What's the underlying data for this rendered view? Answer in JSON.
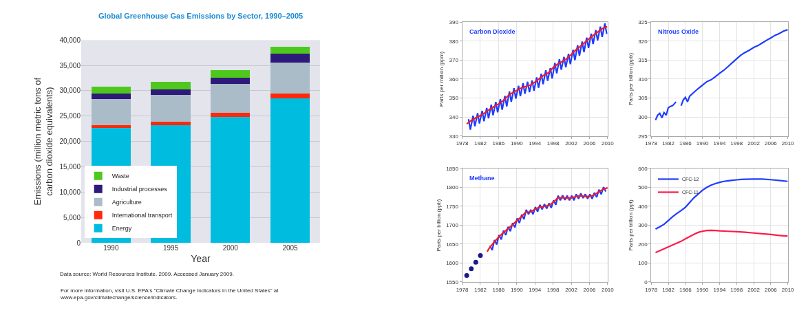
{
  "chart_data": [
    {
      "type": "bar",
      "title": "Global Greenhouse Gas Emissions by Sector, 1990–2005",
      "xlabel": "Year",
      "ylabel": "Emissions (million metric tons of carbon dioxide equivalents)",
      "categories": [
        "1990",
        "1995",
        "2000",
        "2005"
      ],
      "stacked": true,
      "legend": "bottom left",
      "grid": "y",
      "ylim": [
        0,
        40000
      ],
      "yticks": [
        0,
        {
          "value": 5000,
          "label": "5,000"
        },
        {
          "value": 10000,
          "label": "10,000"
        },
        {
          "value": 15000,
          "label": "15,000"
        },
        {
          "value": 20000,
          "label": "20,000"
        },
        {
          "value": 25000,
          "label": "25,000"
        },
        {
          "value": 30000,
          "label": "30,000"
        },
        {
          "value": 35000,
          "label": "35,000"
        },
        {
          "value": 40000,
          "label": "40,000"
        }
      ],
      "series": [
        {
          "name": "Energy",
          "color": "#00bde0",
          "values": [
            22600,
            23200,
            24800,
            28500
          ]
        },
        {
          "name": "International transport",
          "color": "#ff2a0a",
          "values": [
            600,
            700,
            800,
            900
          ]
        },
        {
          "name": "Agriculture",
          "color": "#a9bcc8",
          "values": [
            5200,
            5300,
            5700,
            6100
          ]
        },
        {
          "name": "Industrial processes",
          "color": "#2e1a78",
          "values": [
            1100,
            1100,
            1300,
            1800
          ]
        },
        {
          "name": "Waste",
          "color": "#4fc81e",
          "values": [
            1300,
            1500,
            1500,
            1400
          ]
        }
      ],
      "annotations": [
        "Data source: World Resources Institute. 2009. Accessed January 2009.",
        "For more information, visit U.S. EPA's \"Climate Change Indicators in the United States\" at www.epa.gov/climatechange/science/indicators."
      ]
    },
    {
      "type": "line",
      "title": "Carbon Dioxide",
      "ylabel": "Parts per million (ppm)",
      "grid": true,
      "xlim": [
        1978,
        2010
      ],
      "xticks": [
        1978,
        1982,
        1986,
        1990,
        1994,
        1998,
        2002,
        2006,
        2010
      ],
      "ylim": [
        330,
        390
      ],
      "yticks": [
        330,
        340,
        350,
        360,
        370,
        380,
        390
      ],
      "series": [
        {
          "color": "#1f3cff",
          "x": [
            1979.4,
            1979.8,
            1980.4,
            1980.8,
            1981.4,
            1981.8,
            1982.4,
            1982.8,
            1983.4,
            1983.8,
            1984.4,
            1984.8,
            1985.4,
            1985.8,
            1986.4,
            1986.8,
            1987.4,
            1987.8,
            1988.4,
            1988.8,
            1989.4,
            1989.8,
            1990.4,
            1990.8,
            1991.4,
            1991.8,
            1992.4,
            1992.8,
            1993.4,
            1993.8,
            1994.4,
            1994.8,
            1995.4,
            1995.8,
            1996.4,
            1996.8,
            1997.4,
            1997.8,
            1998.4,
            1998.8,
            1999.4,
            1999.8,
            2000.4,
            2000.8,
            2001.4,
            2001.8,
            2002.4,
            2002.8,
            2003.4,
            2003.8,
            2004.4,
            2004.8,
            2005.4,
            2005.8,
            2006.4,
            2006.8,
            2007.4,
            2007.8,
            2008.4,
            2008.8,
            2009.4,
            2009.8
          ],
          "values": [
            338.9,
            333.4,
            340.7,
            335.2,
            342.1,
            336.6,
            343.3,
            337.8,
            344.8,
            339.3,
            346.5,
            341.0,
            348.0,
            342.5,
            349.4,
            343.9,
            351.1,
            345.6,
            353.5,
            348.0,
            355.2,
            349.7,
            356.5,
            351.0,
            357.8,
            352.3,
            358.6,
            353.1,
            359.3,
            353.8,
            360.9,
            355.4,
            362.8,
            357.3,
            364.6,
            359.1,
            365.8,
            360.3,
            368.5,
            363.0,
            370.4,
            364.9,
            371.7,
            366.2,
            373.3,
            367.8,
            375.4,
            369.9,
            377.8,
            372.3,
            379.7,
            374.2,
            381.8,
            376.3,
            383.9,
            378.4,
            385.8,
            380.3,
            387.6,
            382.1,
            389.3,
            383.8
          ]
        },
        {
          "color": "#ff1a1a",
          "x": [
            1979,
            1980,
            1981,
            1982,
            1983,
            1984,
            1985,
            1986,
            1987,
            1988,
            1989,
            1990,
            1991,
            1992,
            1993,
            1994,
            1995,
            1996,
            1997,
            1998,
            1999,
            2000,
            2001,
            2002,
            2003,
            2004,
            2005,
            2006,
            2007,
            2008,
            2009,
            2009.9
          ],
          "values": [
            336.4,
            338.2,
            339.6,
            340.8,
            342.3,
            344.0,
            345.5,
            346.9,
            348.6,
            351.0,
            352.7,
            354.0,
            355.3,
            356.1,
            356.8,
            358.4,
            360.3,
            362.1,
            363.3,
            366.0,
            367.9,
            369.2,
            370.8,
            372.9,
            375.3,
            377.2,
            379.3,
            381.4,
            383.3,
            385.1,
            386.8,
            387.6
          ]
        }
      ]
    },
    {
      "type": "line",
      "title": "Nitrous Oxide",
      "ylabel": "Parts per billion (ppb)",
      "grid": true,
      "xlim": [
        1978,
        2010
      ],
      "xticks": [
        1978,
        1982,
        1986,
        1990,
        1994,
        1998,
        2002,
        2006,
        2010
      ],
      "ylim": [
        295,
        325
      ],
      "yticks": [
        295,
        300,
        305,
        310,
        315,
        320,
        325
      ],
      "series": [
        {
          "color": "#1f3cff",
          "x": [
            1979,
            1979.5,
            1980,
            1980.5,
            1981,
            1981.5,
            1982,
            1982.5,
            1983,
            1983.8,
            1984.2,
            1985,
            1985.5,
            1986,
            1986.5,
            1987,
            1988,
            1989,
            1990,
            1991,
            1992,
            1993,
            1994,
            1995,
            1996,
            1997,
            1998,
            1999,
            2000,
            2001,
            2002,
            2003,
            2004,
            2005,
            2006,
            2007,
            2008,
            2009,
            2010
          ],
          "values": [
            299.2,
            300.5,
            301,
            299.8,
            301.2,
            300.5,
            302.5,
            302.8,
            303.0,
            304.0,
            null,
            303.0,
            304.5,
            305.2,
            304.0,
            305.5,
            306.5,
            307.5,
            308.4,
            309.3,
            309.8,
            310.6,
            311.5,
            312.3,
            313.3,
            314.3,
            315.3,
            316.3,
            317.0,
            317.6,
            318.3,
            318.8,
            319.5,
            320.2,
            320.8,
            321.5,
            322.0,
            322.6,
            323.0
          ]
        }
      ]
    },
    {
      "type": "line",
      "title": "Methane",
      "ylabel": "Parts per billion (ppb)",
      "grid": true,
      "xlim": [
        1978,
        2010
      ],
      "xticks": [
        1978,
        1982,
        1986,
        1990,
        1994,
        1998,
        2002,
        2006,
        2010
      ],
      "ylim": [
        1550,
        1850
      ],
      "yticks": [
        1550,
        1600,
        1650,
        1700,
        1750,
        1800,
        1850
      ],
      "series": [
        {
          "type": "scatter",
          "marker": "circle",
          "color": "#1a1a8c",
          "x": [
            1979,
            1980,
            1981,
            1982
          ],
          "values": [
            1567,
            1585,
            1602,
            1620
          ]
        },
        {
          "color": "#1f3cff",
          "x": [
            1984.1,
            1984.6,
            1985.1,
            1985.6,
            1986.1,
            1986.6,
            1987.1,
            1987.6,
            1988.1,
            1988.6,
            1989.1,
            1989.6,
            1990.1,
            1990.6,
            1991.1,
            1991.6,
            1992.1,
            1992.6,
            1993.1,
            1993.6,
            1994.1,
            1994.6,
            1995.1,
            1995.6,
            1996.1,
            1996.6,
            1997.1,
            1997.6,
            1998.1,
            1998.6,
            1999.1,
            1999.6,
            2000.1,
            2000.6,
            2001.1,
            2001.6,
            2002.1,
            2002.6,
            2003.1,
            2003.6,
            2004.1,
            2004.6,
            2005.1,
            2005.6,
            2006.1,
            2006.6,
            2007.1,
            2007.6,
            2008.1,
            2008.6,
            2009.1,
            2009.6
          ],
          "values": [
            1646,
            1634,
            1661,
            1649,
            1674,
            1662,
            1686,
            1674,
            1696,
            1684,
            1706,
            1694,
            1718,
            1706,
            1728,
            1716,
            1741,
            1729,
            1741,
            1729,
            1748,
            1736,
            1754,
            1742,
            1756,
            1744,
            1758,
            1746,
            1766,
            1754,
            1778,
            1766,
            1779,
            1767,
            1778,
            1766,
            1778,
            1766,
            1782,
            1770,
            1784,
            1772,
            1782,
            1770,
            1782,
            1770,
            1786,
            1774,
            1794,
            1782,
            1801,
            1789
          ]
        },
        {
          "color": "#ff1a1a",
          "x": [
            1983.5,
            1984,
            1985,
            1986,
            1987,
            1988,
            1989,
            1990,
            1991,
            1992,
            1993,
            1994,
            1995,
            1996,
            1997,
            1998,
            1999,
            2000,
            2001,
            2002,
            2003,
            2004,
            2005,
            2006,
            2007,
            2008,
            2009,
            2010
          ],
          "values": [
            1630,
            1640,
            1655,
            1668,
            1680,
            1690,
            1700,
            1712,
            1722,
            1735,
            1735,
            1742,
            1748,
            1750,
            1752,
            1760,
            1772,
            1773,
            1772,
            1772,
            1776,
            1778,
            1776,
            1776,
            1780,
            1788,
            1795,
            1799
          ]
        }
      ]
    },
    {
      "type": "line",
      "ylabel": "Parts per trillion (ppt)",
      "grid": true,
      "legend": "top left",
      "xlim": [
        1978,
        2010
      ],
      "xticks": [
        1978,
        1982,
        1986,
        1990,
        1994,
        1998,
        2002,
        2006,
        2010
      ],
      "ylim": [
        0,
        600
      ],
      "yticks": [
        0,
        100,
        200,
        300,
        400,
        500,
        600
      ],
      "series": [
        {
          "name": "CFC-12",
          "color": "#1f3cff",
          "x": [
            1979,
            1980,
            1981,
            1982,
            1983,
            1984,
            1985,
            1986,
            1987,
            1988,
            1989,
            1990,
            1991,
            1992,
            1993,
            1994,
            1995,
            1996,
            1997,
            1998,
            1999,
            2000,
            2002,
            2004,
            2006,
            2008,
            2010
          ],
          "values": [
            280,
            292,
            305,
            325,
            345,
            362,
            378,
            395,
            420,
            445,
            465,
            485,
            500,
            512,
            520,
            527,
            532,
            535,
            538,
            540,
            542,
            543,
            544,
            544,
            541,
            537,
            532
          ]
        },
        {
          "name": "CFC-11",
          "color": "#ff1a4a",
          "x": [
            1979,
            1980,
            1981,
            1982,
            1983,
            1984,
            1985,
            1986,
            1987,
            1988,
            1989,
            1990,
            1991,
            1992,
            1993,
            1994,
            1996,
            1998,
            2000,
            2002,
            2004,
            2006,
            2008,
            2010
          ],
          "values": [
            155,
            165,
            175,
            185,
            195,
            205,
            215,
            228,
            240,
            252,
            262,
            268,
            272,
            273,
            272,
            270,
            268,
            266,
            263,
            259,
            255,
            251,
            246,
            242
          ]
        }
      ]
    }
  ]
}
